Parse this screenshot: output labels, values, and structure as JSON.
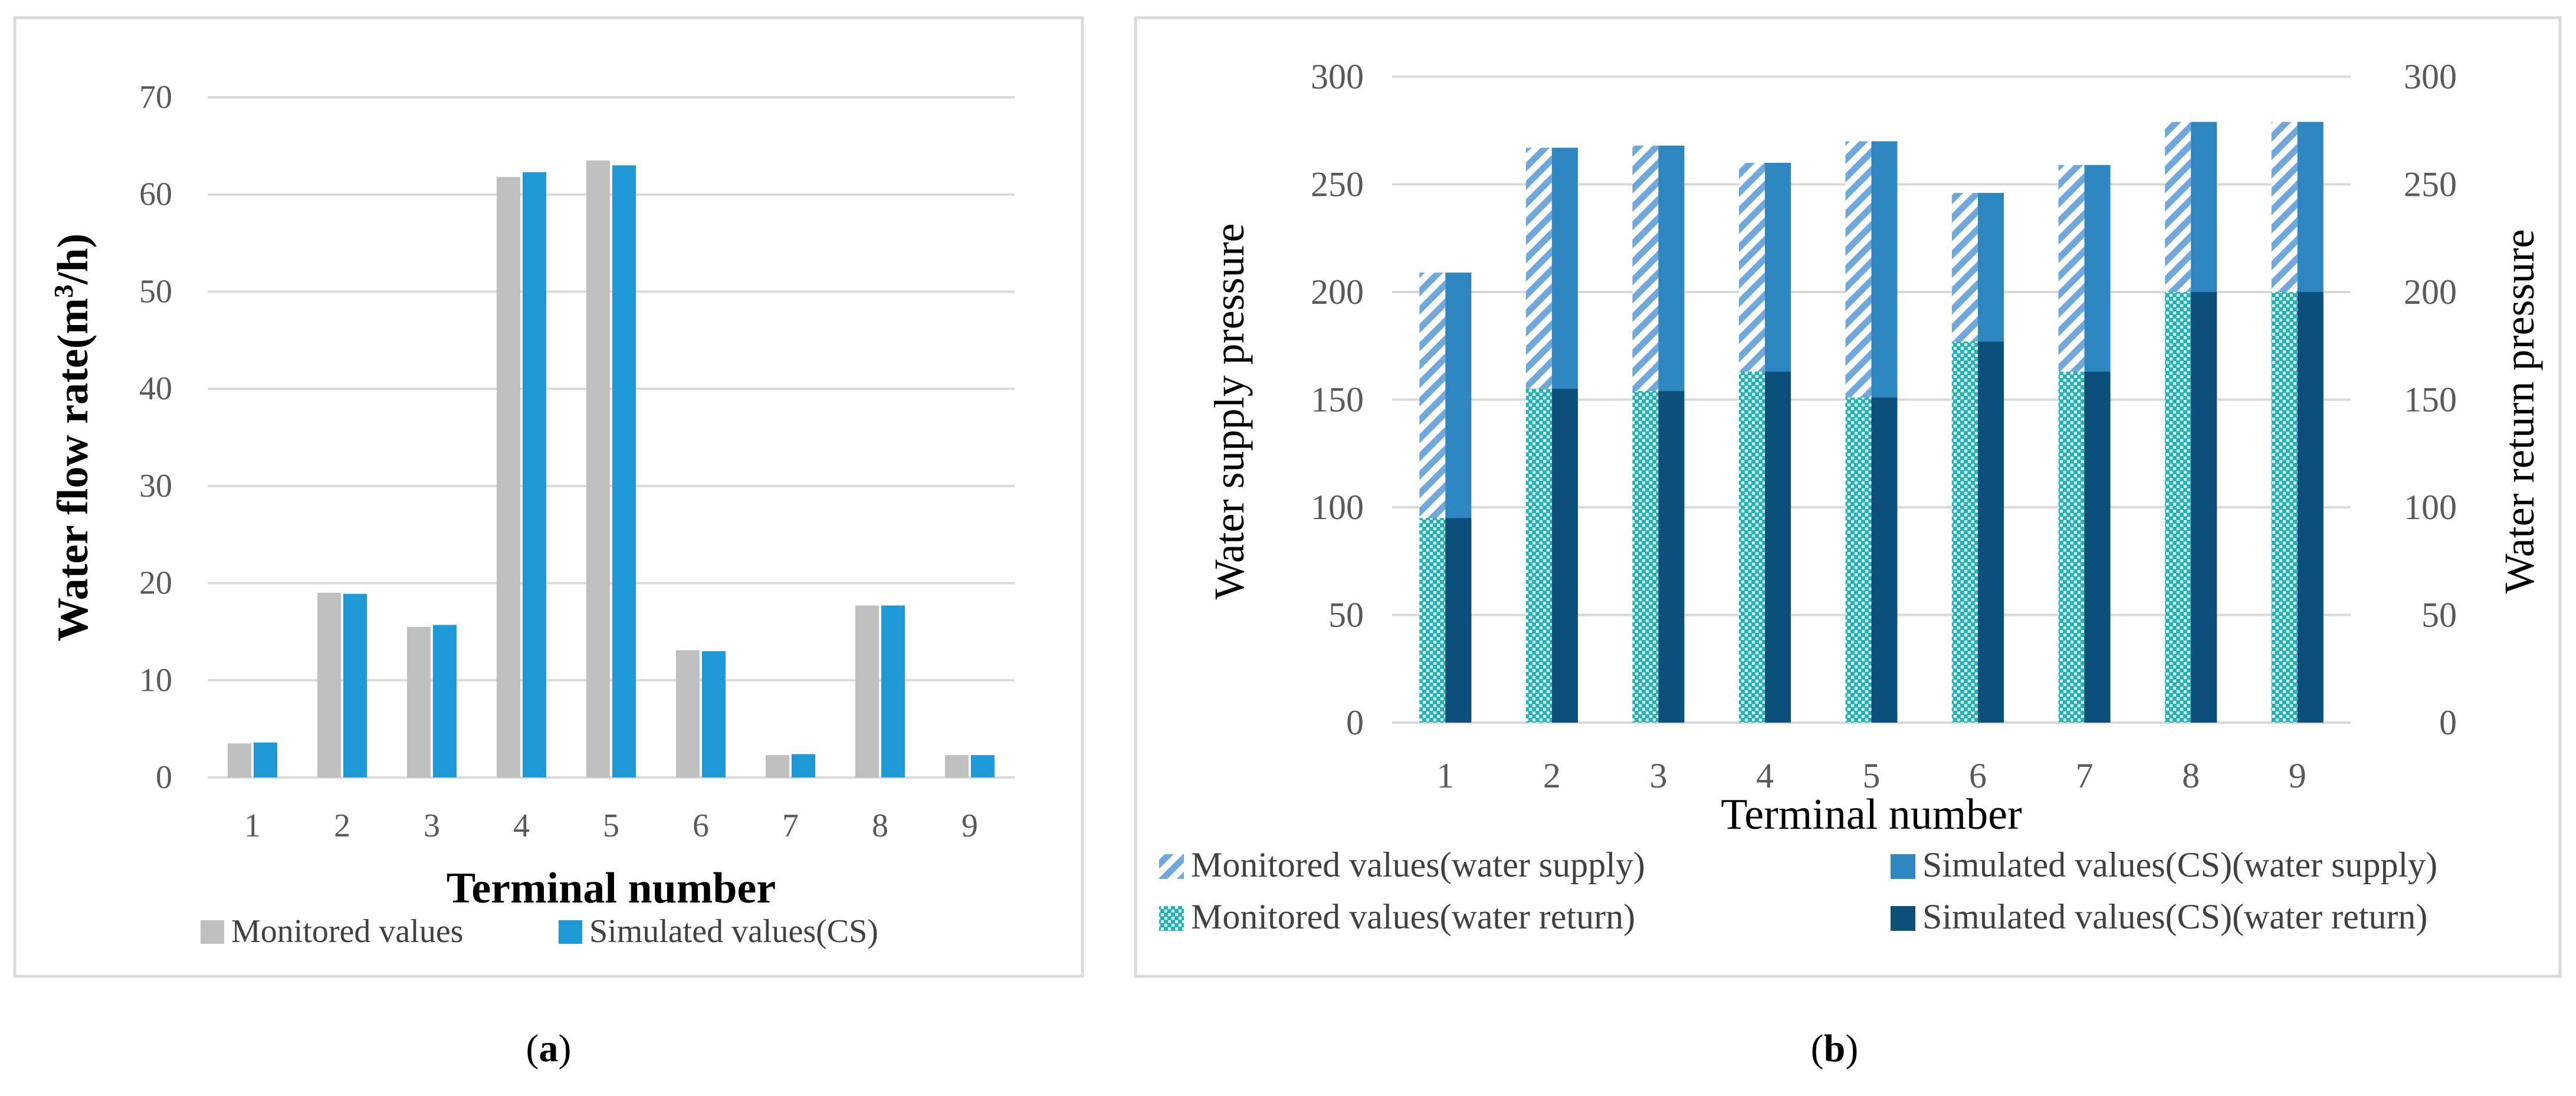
{
  "panels": [
    {
      "id": "a",
      "open": "(",
      "letter": "a",
      "close": ")"
    },
    {
      "id": "b",
      "open": "(",
      "letter": "b",
      "close": ")"
    }
  ],
  "chart_data": [
    {
      "type": "bar",
      "title": "",
      "xlabel": "Terminal number",
      "ylabel_main": "Water flow rate(m",
      "ylabel_sup": "3",
      "ylabel_tail": "/h)",
      "categories": [
        "1",
        "2",
        "3",
        "4",
        "5",
        "6",
        "7",
        "8",
        "9"
      ],
      "ylim": [
        0,
        70
      ],
      "yticks": [
        "0",
        "10",
        "20",
        "30",
        "40",
        "50",
        "60",
        "70"
      ],
      "grid": true,
      "legend_position": "bottom",
      "series": [
        {
          "name": "Monitored values",
          "color": "#bfbfbf",
          "values": [
            3.5,
            19,
            15.5,
            61.8,
            63.5,
            13.1,
            2.3,
            17.7,
            2.3
          ]
        },
        {
          "name": "Simulated values(CS)",
          "color": "#1f9ad6",
          "values": [
            3.6,
            18.9,
            15.7,
            62.3,
            63.0,
            13.0,
            2.4,
            17.7,
            2.3
          ]
        }
      ]
    },
    {
      "type": "bar",
      "title": "",
      "xlabel": "Terminal number",
      "ylabel_left": "Water supply pressure",
      "ylabel_right": "Water return pressure",
      "categories": [
        "1",
        "2",
        "3",
        "4",
        "5",
        "6",
        "7",
        "8",
        "9"
      ],
      "ylim": [
        0,
        300
      ],
      "yticks": [
        "0",
        "50",
        "100",
        "150",
        "200",
        "250",
        "300"
      ],
      "grid": true,
      "legend_position": "bottom",
      "series": [
        {
          "name": "Monitored values(water supply)",
          "color": "#5b9bd5",
          "pattern": "diagonal-stripes",
          "values": [
            209,
            267,
            268,
            260,
            270,
            246,
            259,
            279,
            279
          ]
        },
        {
          "name": "Simulated values(CS)(water supply)",
          "color": "#2e86c1",
          "pattern": "solid",
          "values": [
            209,
            267,
            268,
            260,
            270,
            246,
            259,
            279,
            279
          ]
        },
        {
          "name": "Monitored values(water return)",
          "color": "#17b2b2",
          "pattern": "dots",
          "values": [
            95,
            155,
            154,
            163,
            151,
            177,
            163,
            200,
            200
          ]
        },
        {
          "name": "Simulated values(CS)(water return)",
          "color": "#0b4f7a",
          "pattern": "solid",
          "values": [
            95,
            155,
            154,
            163,
            151,
            177,
            163,
            200,
            200
          ]
        }
      ]
    }
  ]
}
